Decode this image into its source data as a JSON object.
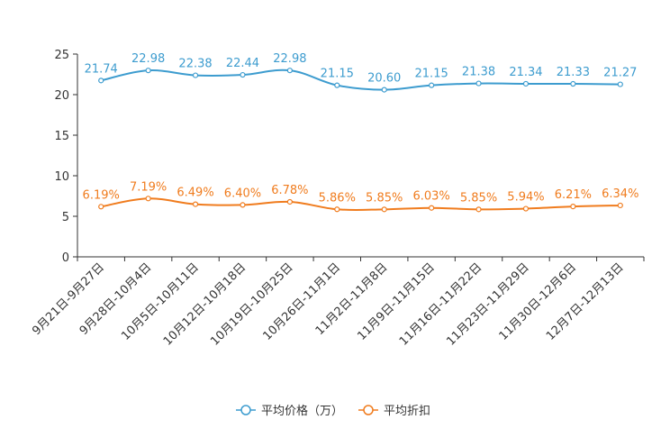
{
  "chart_data": {
    "type": "line",
    "title": "",
    "xlabel": "",
    "ylabel": "",
    "ylim": [
      0,
      25
    ],
    "yticks": [
      0,
      5,
      10,
      15,
      20,
      25
    ],
    "grid": false,
    "legend_position": "bottom-center",
    "categories": [
      "9月21日-9月27日",
      "9月28日-10月4日",
      "10月5日-10月11日",
      "10月12日-10月18日",
      "10月19日-10月25日",
      "10月26日-11月1日",
      "11月2日-11月8日",
      "11月9日-11月15日",
      "11月16日-11月22日",
      "11月23日-11月29日",
      "11月30日-12月6日",
      "12月7日-12月13日"
    ],
    "series": [
      {
        "name": "平均价格（万）",
        "color": "#3d9ccf",
        "values": [
          21.74,
          22.98,
          22.38,
          22.44,
          22.98,
          21.15,
          20.6,
          21.15,
          21.38,
          21.34,
          21.33,
          21.27
        ],
        "labels": [
          "21.74",
          "22.98",
          "22.38",
          "22.44",
          "22.98",
          "21.15",
          "20.60",
          "21.15",
          "21.38",
          "21.34",
          "21.33",
          "21.27"
        ]
      },
      {
        "name": "平均折扣",
        "color": "#f07c1e",
        "values": [
          6.19,
          7.19,
          6.49,
          6.4,
          6.78,
          5.86,
          5.85,
          6.03,
          5.85,
          5.94,
          6.21,
          6.34
        ],
        "labels": [
          "6.19%",
          "7.19%",
          "6.49%",
          "6.40%",
          "6.78%",
          "5.86%",
          "5.85%",
          "6.03%",
          "5.85%",
          "5.94%",
          "6.21%",
          "6.34%"
        ]
      }
    ]
  }
}
